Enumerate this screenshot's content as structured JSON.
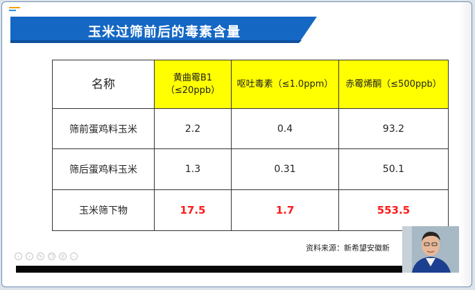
{
  "slide": {
    "title": "玉米过筛前后的毒素含量",
    "source": "资料来源：新希望安徽新"
  },
  "table": {
    "headers": [
      "名称",
      "黄曲霉B1\n（≤20ppb）",
      "呕吐毒素（≤1.0ppm）",
      "赤霉烯酮（≤500ppb）"
    ],
    "header_line1": "黄曲霉B1",
    "header_line2": "（≤20ppb）",
    "rows": [
      {
        "label": "筛前蛋鸡料玉米",
        "values": [
          "2.2",
          "0.4",
          "93.2"
        ]
      },
      {
        "label": "筛后蛋鸡料玉米",
        "values": [
          "1.3",
          "0.31",
          "50.1"
        ]
      },
      {
        "label": "玉米筛下物",
        "values": [
          "17.5",
          "1.7",
          "553.5"
        ]
      }
    ]
  },
  "player": {
    "controls": [
      "prev-icon",
      "next-icon",
      "pen-icon",
      "copy-icon",
      "zoom-icon",
      "more-icon"
    ]
  },
  "colors": {
    "banner_blue": "#1567c4",
    "header_yellow": "#ffff00",
    "highlight_red": "#ff1a1a"
  }
}
